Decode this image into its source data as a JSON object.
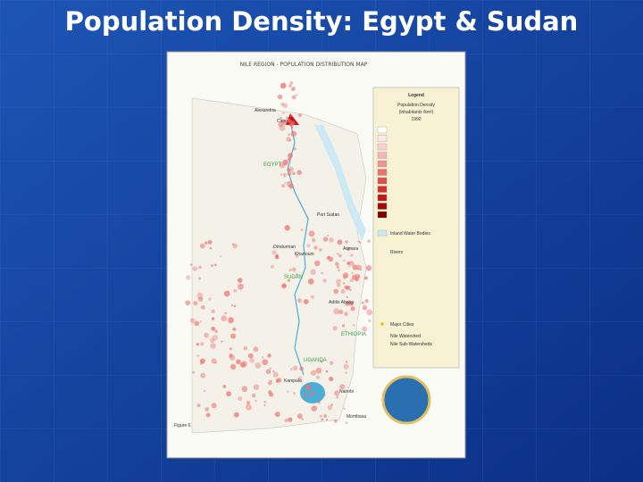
{
  "slide": {
    "title": "Population Density: Egypt & Sudan"
  },
  "map": {
    "title": "NILE REGION - POPULATION DISTRIBUTION MAP",
    "countries": [
      "EGYPT",
      "SUDAN",
      "ETHIOPIA",
      "UGANDA"
    ],
    "places": [
      "Alexandria",
      "Cairo",
      "Port Sudan",
      "Omdurman",
      "Khartoum",
      "Asmara",
      "Addis Ababa",
      "Kampala",
      "Nairobi",
      "Mombasa"
    ],
    "figure": "Figure 6"
  },
  "legend": {
    "title": "Legend",
    "heading": "Population Density",
    "unit": "(inhabitants /km²)",
    "year": "1990",
    "items": [
      "Inland Water Bodies",
      "Rivers",
      "Major Cities",
      "Nile Watershed",
      "Nile Sub-Watersheds"
    ]
  }
}
